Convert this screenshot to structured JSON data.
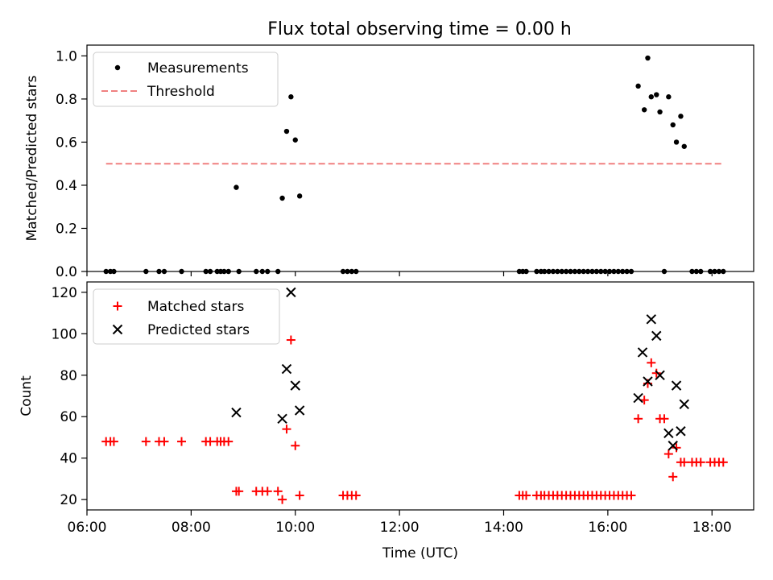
{
  "title": "Flux total observing time = 0.00 h",
  "colors": {
    "measurement": "#000000",
    "threshold": "#f08080",
    "matched": "#ff0000",
    "predicted": "#000000",
    "axes": "#000000"
  },
  "chart_data": [
    {
      "type": "scatter",
      "panel": "top",
      "ylabel": "Matched/Predicted stars",
      "ylim": [
        0,
        1.05
      ],
      "xlim": [
        "06:00",
        "18:48"
      ],
      "yticks": [
        0.0,
        0.2,
        0.4,
        0.6,
        0.8,
        1.0
      ],
      "ytick_labels": [
        "0.0",
        "0.2",
        "0.4",
        "0.6",
        "0.8",
        "1.0"
      ],
      "legend": {
        "placement": "top-left",
        "entries": [
          "Measurements",
          "Threshold"
        ]
      },
      "series": [
        {
          "name": "Measurements",
          "marker": "dot",
          "points": [
            [
              "06:22",
              0
            ],
            [
              "06:27",
              0
            ],
            [
              "06:31",
              0
            ],
            [
              "07:08",
              0
            ],
            [
              "07:23",
              0
            ],
            [
              "07:29",
              0
            ],
            [
              "07:49",
              0
            ],
            [
              "08:17",
              0
            ],
            [
              "08:22",
              0
            ],
            [
              "08:30",
              0
            ],
            [
              "08:34",
              0
            ],
            [
              "08:38",
              0
            ],
            [
              "08:43",
              0
            ],
            [
              "08:52",
              0.39
            ],
            [
              "08:55",
              0
            ],
            [
              "09:15",
              0
            ],
            [
              "09:22",
              0
            ],
            [
              "09:28",
              0
            ],
            [
              "09:40",
              0
            ],
            [
              "09:45",
              0.34
            ],
            [
              "09:50",
              0.65
            ],
            [
              "09:55",
              0.81
            ],
            [
              "10:00",
              0.61
            ],
            [
              "10:05",
              0.35
            ],
            [
              "10:55",
              0
            ],
            [
              "11:00",
              0
            ],
            [
              "11:05",
              0
            ],
            [
              "11:10",
              0
            ],
            [
              "14:18",
              0
            ],
            [
              "14:22",
              0
            ],
            [
              "14:26",
              0
            ],
            [
              "14:38",
              0
            ],
            [
              "14:43",
              0
            ],
            [
              "14:47",
              0
            ],
            [
              "14:52",
              0
            ],
            [
              "14:57",
              0
            ],
            [
              "15:02",
              0
            ],
            [
              "15:07",
              0
            ],
            [
              "15:12",
              0
            ],
            [
              "15:17",
              0
            ],
            [
              "15:22",
              0
            ],
            [
              "15:27",
              0
            ],
            [
              "15:32",
              0
            ],
            [
              "15:37",
              0
            ],
            [
              "15:42",
              0
            ],
            [
              "15:47",
              0
            ],
            [
              "15:52",
              0
            ],
            [
              "15:57",
              0
            ],
            [
              "16:02",
              0
            ],
            [
              "16:07",
              0
            ],
            [
              "16:12",
              0
            ],
            [
              "16:17",
              0
            ],
            [
              "16:22",
              0
            ],
            [
              "16:27",
              0
            ],
            [
              "16:35",
              0.86
            ],
            [
              "16:42",
              0.75
            ],
            [
              "16:46",
              0.99
            ],
            [
              "16:50",
              0.81
            ],
            [
              "16:56",
              0.82
            ],
            [
              "17:00",
              0.74
            ],
            [
              "17:05",
              0
            ],
            [
              "17:10",
              0.81
            ],
            [
              "17:15",
              0.68
            ],
            [
              "17:19",
              0.6
            ],
            [
              "17:24",
              0.72
            ],
            [
              "17:28",
              0.58
            ],
            [
              "17:37",
              0
            ],
            [
              "17:42",
              0
            ],
            [
              "17:47",
              0
            ],
            [
              "17:58",
              0
            ],
            [
              "18:03",
              0
            ],
            [
              "18:08",
              0
            ],
            [
              "18:13",
              0
            ]
          ]
        },
        {
          "name": "Threshold",
          "style": "dashed",
          "x": [
            "06:22",
            "18:13"
          ],
          "y": [
            0.5,
            0.5
          ]
        }
      ]
    },
    {
      "type": "scatter",
      "panel": "bottom",
      "xlabel": "Time (UTC)",
      "ylabel": "Count",
      "ylim": [
        15,
        125
      ],
      "xlim": [
        "06:00",
        "18:48"
      ],
      "yticks": [
        20,
        40,
        60,
        80,
        100,
        120
      ],
      "ytick_labels": [
        "20",
        "40",
        "60",
        "80",
        "100",
        "120"
      ],
      "xticks": [
        "06:00",
        "08:00",
        "10:00",
        "12:00",
        "14:00",
        "16:00",
        "18:00"
      ],
      "legend": {
        "placement": "top-left",
        "entries": [
          "Matched stars",
          "Predicted stars"
        ]
      },
      "series": [
        {
          "name": "Matched stars",
          "marker": "plus",
          "points": [
            [
              "06:22",
              48
            ],
            [
              "06:27",
              48
            ],
            [
              "06:31",
              48
            ],
            [
              "07:08",
              48
            ],
            [
              "07:23",
              48
            ],
            [
              "07:29",
              48
            ],
            [
              "07:49",
              48
            ],
            [
              "08:17",
              48
            ],
            [
              "08:22",
              48
            ],
            [
              "08:30",
              48
            ],
            [
              "08:34",
              48
            ],
            [
              "08:38",
              48
            ],
            [
              "08:43",
              48
            ],
            [
              "08:52",
              24
            ],
            [
              "08:55",
              24
            ],
            [
              "09:15",
              24
            ],
            [
              "09:22",
              24
            ],
            [
              "09:28",
              24
            ],
            [
              "09:40",
              24
            ],
            [
              "09:45",
              20
            ],
            [
              "09:50",
              54
            ],
            [
              "09:55",
              97
            ],
            [
              "10:00",
              46
            ],
            [
              "10:05",
              22
            ],
            [
              "10:55",
              22
            ],
            [
              "11:00",
              22
            ],
            [
              "11:05",
              22
            ],
            [
              "11:10",
              22
            ],
            [
              "14:18",
              22
            ],
            [
              "14:22",
              22
            ],
            [
              "14:26",
              22
            ],
            [
              "14:38",
              22
            ],
            [
              "14:43",
              22
            ],
            [
              "14:47",
              22
            ],
            [
              "14:52",
              22
            ],
            [
              "14:57",
              22
            ],
            [
              "15:02",
              22
            ],
            [
              "15:07",
              22
            ],
            [
              "15:12",
              22
            ],
            [
              "15:17",
              22
            ],
            [
              "15:22",
              22
            ],
            [
              "15:27",
              22
            ],
            [
              "15:32",
              22
            ],
            [
              "15:37",
              22
            ],
            [
              "15:42",
              22
            ],
            [
              "15:47",
              22
            ],
            [
              "15:52",
              22
            ],
            [
              "15:57",
              22
            ],
            [
              "16:02",
              22
            ],
            [
              "16:07",
              22
            ],
            [
              "16:12",
              22
            ],
            [
              "16:17",
              22
            ],
            [
              "16:22",
              22
            ],
            [
              "16:27",
              22
            ],
            [
              "16:35",
              59
            ],
            [
              "16:42",
              68
            ],
            [
              "16:46",
              76
            ],
            [
              "16:50",
              86
            ],
            [
              "16:56",
              81
            ],
            [
              "17:00",
              59
            ],
            [
              "17:05",
              59
            ],
            [
              "17:10",
              42
            ],
            [
              "17:15",
              31
            ],
            [
              "17:19",
              45
            ],
            [
              "17:24",
              38
            ],
            [
              "17:28",
              38
            ],
            [
              "17:37",
              38
            ],
            [
              "17:42",
              38
            ],
            [
              "17:47",
              38
            ],
            [
              "17:58",
              38
            ],
            [
              "18:03",
              38
            ],
            [
              "18:08",
              38
            ],
            [
              "18:13",
              38
            ]
          ]
        },
        {
          "name": "Predicted stars",
          "marker": "x",
          "points": [
            [
              "08:52",
              62
            ],
            [
              "09:45",
              59
            ],
            [
              "09:50",
              83
            ],
            [
              "09:55",
              120
            ],
            [
              "10:00",
              75
            ],
            [
              "10:05",
              63
            ],
            [
              "16:35",
              69
            ],
            [
              "16:40",
              91
            ],
            [
              "16:46",
              77
            ],
            [
              "16:50",
              107
            ],
            [
              "16:56",
              99
            ],
            [
              "17:00",
              80
            ],
            [
              "17:10",
              52
            ],
            [
              "17:15",
              46
            ],
            [
              "17:19",
              75
            ],
            [
              "17:24",
              53
            ],
            [
              "17:28",
              66
            ]
          ]
        }
      ]
    }
  ]
}
